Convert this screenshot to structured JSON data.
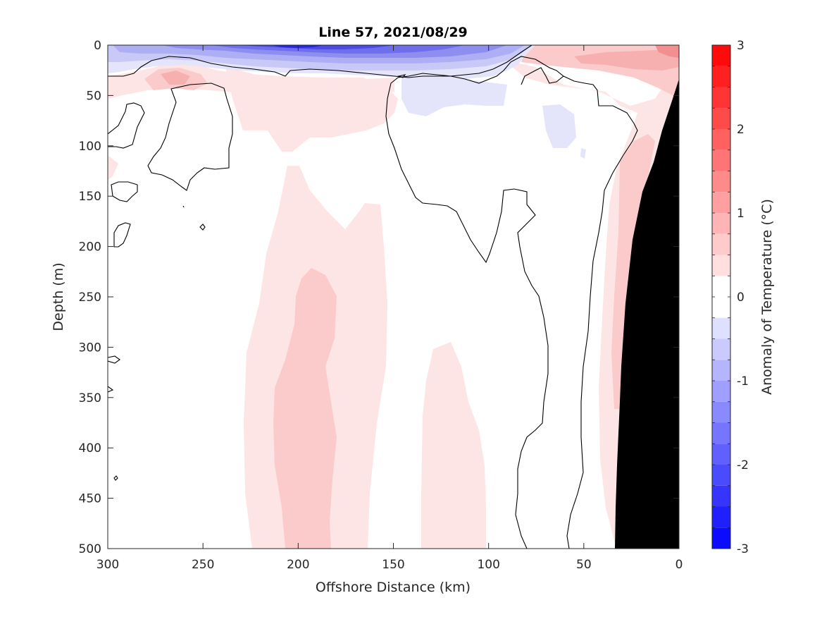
{
  "chart_data": {
    "type": "heatmap",
    "title": "Line 57, 2021/08/29",
    "xlabel": "Offshore Distance (km)",
    "ylabel": "Depth (m)",
    "xlim": [
      300,
      0
    ],
    "ylim": [
      0,
      500
    ],
    "x_reversed": true,
    "y_reversed": true,
    "xticks": [
      300,
      250,
      200,
      150,
      100,
      50,
      0
    ],
    "yticks": [
      0,
      50,
      100,
      150,
      200,
      250,
      300,
      350,
      400,
      450,
      500
    ],
    "colorbar": {
      "label": "Anomaly of Temperature (°C)",
      "range": [
        -3,
        3
      ],
      "step": 0.25,
      "ticks": [
        -3,
        -2,
        -1,
        0,
        1,
        2,
        3
      ],
      "colormap": "blue-white-red",
      "low_color": "#0000ff",
      "high_color": "#ff0000",
      "mid_color": "#ffffff"
    },
    "contour_levels": [
      0
    ],
    "grid": false,
    "land_mask_color": "#000000",
    "features": [
      {
        "name": "surface cold anomaly",
        "x_range": [
          300,
          75
        ],
        "depth_range": [
          0,
          30
        ],
        "min_value": -2.5,
        "core_x": 200,
        "core_depth": 5
      },
      {
        "name": "nearshore warm surface anomaly",
        "x_range": [
          80,
          0
        ],
        "depth_range": [
          0,
          40
        ],
        "max_value": 1.25,
        "core_x": 5,
        "core_depth": 5
      },
      {
        "name": "subsurface warm core",
        "x_range": [
          225,
          165
        ],
        "depth_range": [
          60,
          500
        ],
        "max_value": 0.75,
        "core_x": 195,
        "core_depth": 400
      },
      {
        "name": "warm tongue",
        "x_range": [
          135,
          100
        ],
        "depth_range": [
          290,
          500
        ],
        "max_value": 0.5
      },
      {
        "name": "coastal warm band",
        "x_range": [
          40,
          25
        ],
        "depth_range": [
          100,
          460
        ],
        "max_value": 0.75
      }
    ]
  }
}
